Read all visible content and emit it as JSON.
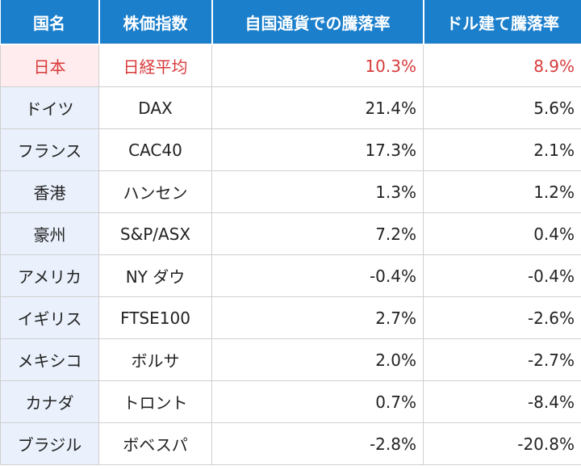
{
  "headers": [
    "国名",
    "株価指数",
    "自国通貨での騰落率",
    "ドル建て騰落率"
  ],
  "rows": [
    {
      "country": "日本",
      "index": "日経平均",
      "local": "10.3%",
      "usd": "8.9%"
    },
    {
      "country": "ドイツ",
      "index": "DAX",
      "local": "21.4%",
      "usd": "5.6%"
    },
    {
      "country": "フランス",
      "index": "CAC40",
      "local": "17.3%",
      "usd": "2.1%"
    },
    {
      "country": "香港",
      "index": "ハンセン",
      "local": "1.3%",
      "usd": "1.2%"
    },
    {
      "country": "豪州",
      "index": "S&P/ASX",
      "local": "7.2%",
      "usd": "0.4%"
    },
    {
      "country": "アメリカ",
      "index": "NY ダウ",
      "local": "-0.4%",
      "usd": "-0.4%"
    },
    {
      "country": "イギリス",
      "index": "FTSE100",
      "local": "2.7%",
      "usd": "-2.6%"
    },
    {
      "country": "メキシコ",
      "index": "ボルサ",
      "local": "2.0%",
      "usd": "-2.7%"
    },
    {
      "country": "カナダ",
      "index": "トロント",
      "local": "0.7%",
      "usd": "-8.4%"
    },
    {
      "country": "ブラジル",
      "index": "ボベスパ",
      "local": "-2.8%",
      "usd": "-20.8%"
    }
  ],
  "colors": {
    "header_bg": "#1b7fcc",
    "highlight_text": "#d83a3a",
    "country_bg": "#eaf1fc",
    "highlight_country_bg": "#ffecee"
  }
}
